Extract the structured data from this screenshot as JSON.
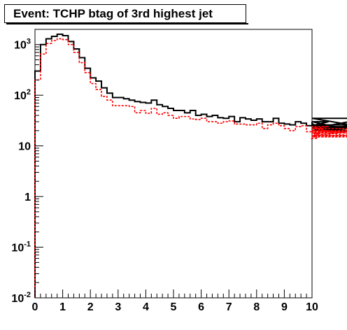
{
  "chart_data": {
    "type": "histogram",
    "title": "Event: TCHP btag of 3rd highest jet",
    "xlabel": "",
    "ylabel": "",
    "xlim": [
      0,
      10
    ],
    "ylim": [
      0.01,
      2000
    ],
    "log_y": true,
    "grid": false,
    "x_ticks": [
      "0",
      "1",
      "2",
      "3",
      "4",
      "5",
      "6",
      "7",
      "8",
      "9",
      "10"
    ],
    "y_ticks": [
      {
        "base": "10",
        "exp": "-2"
      },
      {
        "base": "10",
        "exp": "-1"
      },
      {
        "base": "1",
        "exp": ""
      },
      {
        "base": "10",
        "exp": ""
      },
      {
        "base": "10",
        "exp": "2"
      },
      {
        "base": "10",
        "exp": "3"
      }
    ],
    "bin_width": 0.2,
    "series": [
      {
        "style": "solid",
        "color": "#000000",
        "values": [
          300,
          1000,
          1300,
          1450,
          1600,
          1500,
          1150,
          820,
          550,
          340,
          220,
          190,
          140,
          110,
          90,
          90,
          85,
          80,
          75,
          72,
          70,
          80,
          65,
          60,
          55,
          50,
          50,
          45,
          50,
          40,
          42,
          38,
          40,
          36,
          35,
          38,
          30,
          36,
          34,
          32,
          34,
          30,
          30,
          35,
          28,
          27,
          26,
          30,
          28,
          25,
          28,
          22,
          25,
          30,
          24,
          22,
          22,
          20,
          26,
          22,
          35,
          22,
          24
        ]
      },
      {
        "style": "dashed",
        "color": "#ff0000",
        "values": [
          200,
          650,
          1050,
          1200,
          1300,
          1250,
          1000,
          700,
          440,
          280,
          170,
          130,
          95,
          80,
          62,
          62,
          62,
          60,
          45,
          50,
          44,
          55,
          42,
          45,
          40,
          35,
          38,
          38,
          34,
          33,
          35,
          30,
          30,
          28,
          30,
          31,
          27,
          27,
          26,
          26,
          28,
          22,
          26,
          28,
          25,
          22,
          20,
          24,
          25,
          19,
          20,
          14,
          22,
          24,
          18,
          15,
          19,
          16,
          20,
          18,
          22,
          15,
          16
        ]
      }
    ]
  }
}
